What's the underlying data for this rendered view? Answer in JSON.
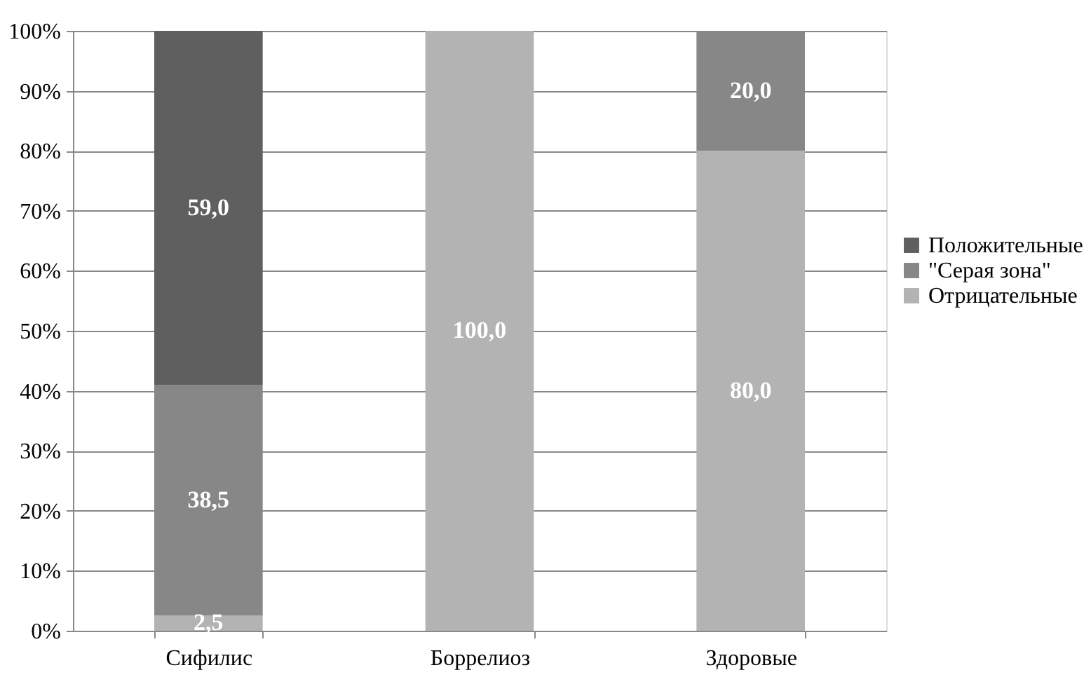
{
  "chart_data": {
    "type": "bar",
    "stacked": true,
    "categories": [
      "Сифилис",
      "Боррелиоз",
      "Здоровые"
    ],
    "series": [
      {
        "name": "Отрицательные",
        "color": "#b3b3b3",
        "values": [
          2.5,
          100.0,
          80.0
        ],
        "value_labels": [
          "2,5",
          "100,0",
          "80,0"
        ]
      },
      {
        "name": "\"Серая зона\"",
        "color": "#878787",
        "values": [
          38.5,
          null,
          20.0
        ],
        "value_labels": [
          "38,5",
          null,
          "20,0"
        ]
      },
      {
        "name": "Положительные",
        "color": "#5f5f5f",
        "values": [
          59.0,
          null,
          null
        ],
        "value_labels": [
          "59,0",
          null,
          null
        ]
      }
    ],
    "ylim": [
      0,
      100
    ],
    "yticks": [
      {
        "value": 0,
        "label": "0%"
      },
      {
        "value": 10,
        "label": "10%"
      },
      {
        "value": 20,
        "label": "20%"
      },
      {
        "value": 30,
        "label": "30%"
      },
      {
        "value": 40,
        "label": "40%"
      },
      {
        "value": 50,
        "label": "50%"
      },
      {
        "value": 60,
        "label": "60%"
      },
      {
        "value": 70,
        "label": "70%"
      },
      {
        "value": 80,
        "label": "80%"
      },
      {
        "value": 90,
        "label": "90%"
      },
      {
        "value": 100,
        "label": "100%"
      }
    ],
    "grid": "y",
    "legend": "right"
  }
}
